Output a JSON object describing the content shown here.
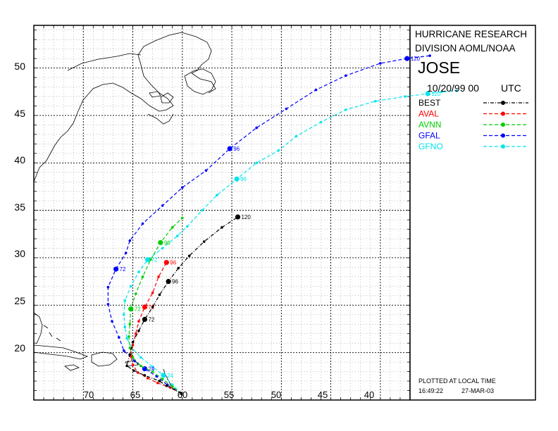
{
  "header": {
    "org_line1": "HURRICANE RESEARCH",
    "org_line2": "DIVISION AOML/NOAA",
    "storm_name": "JOSE",
    "datetime": "10/20/99 00",
    "tz": "UTC"
  },
  "footer": {
    "plotted_note": "PLOTTED AT LOCAL TIME",
    "plot_time": "16:49:22",
    "plot_date": "27-MAR-03"
  },
  "axes": {
    "lon_ticks": [
      "70",
      "65",
      "60",
      "55",
      "50",
      "45",
      "40"
    ],
    "lat_ticks": [
      "50",
      "45",
      "40",
      "35",
      "30",
      "25",
      "20"
    ],
    "lon_range": [
      -75,
      -37
    ],
    "lat_range": [
      15,
      54.5
    ]
  },
  "legend": [
    {
      "name": "BEST",
      "color": "#000000",
      "key": "best"
    },
    {
      "name": "AVAL",
      "color": "#ff0000",
      "key": "aval"
    },
    {
      "name": "AVNN",
      "color": "#00cc00",
      "key": "avnn"
    },
    {
      "name": "GFAL",
      "color": "#0000ff",
      "key": "gfal"
    },
    {
      "name": "GFNO",
      "color": "#00e5ee",
      "key": "gfno"
    }
  ],
  "tracks": {
    "best": {
      "color": "#000000",
      "points": [
        [
          -60.1,
          15.7
        ],
        [
          -61.6,
          16.5
        ],
        [
          -62.3,
          17.0
        ],
        [
          -63.8,
          17.6
        ],
        [
          -64.9,
          18.1
        ],
        [
          -65.6,
          18.6
        ],
        [
          -65.3,
          19.8
        ],
        [
          -65.0,
          21.1
        ],
        [
          -64.4,
          22.3
        ],
        [
          -63.8,
          23.5
        ],
        [
          -63.0,
          24.8
        ],
        [
          -62.3,
          26.1
        ],
        [
          -61.4,
          27.5
        ],
        [
          -60.4,
          28.9
        ],
        [
          -59.3,
          30.2
        ],
        [
          -57.8,
          31.7
        ],
        [
          -56.0,
          33.2
        ],
        [
          -54.4,
          34.3
        ]
      ],
      "labels": [
        {
          "t": "72",
          "at": 9
        },
        {
          "t": "96",
          "at": 12
        },
        {
          "t": "120",
          "at": 17
        }
      ]
    },
    "aval": {
      "color": "#ff0000",
      "points": [
        [
          -60.1,
          15.7
        ],
        [
          -61.2,
          16.3
        ],
        [
          -62.5,
          16.8
        ],
        [
          -63.5,
          17.3
        ],
        [
          -64.5,
          17.9
        ],
        [
          -65.0,
          18.7
        ],
        [
          -65.2,
          19.6
        ],
        [
          -65.0,
          20.8
        ],
        [
          -64.7,
          22.0
        ],
        [
          -64.4,
          23.3
        ],
        [
          -63.8,
          24.8
        ],
        [
          -63.0,
          26.3
        ],
        [
          -62.4,
          28.0
        ],
        [
          -61.6,
          29.5
        ]
      ],
      "labels": [
        {
          "t": "72",
          "at": 10
        },
        {
          "t": "96",
          "at": 13
        }
      ]
    },
    "avnn": {
      "color": "#00cc00",
      "points": [
        [
          -60.1,
          15.7
        ],
        [
          -61.0,
          16.4
        ],
        [
          -62.0,
          17.2
        ],
        [
          -63.0,
          18.0
        ],
        [
          -64.2,
          18.6
        ],
        [
          -65.0,
          19.5
        ],
        [
          -65.3,
          20.5
        ],
        [
          -65.4,
          21.7
        ],
        [
          -65.3,
          23.0
        ],
        [
          -65.2,
          24.6
        ],
        [
          -64.7,
          26.2
        ],
        [
          -64.0,
          28.0
        ],
        [
          -63.2,
          29.8
        ],
        [
          -62.2,
          31.6
        ],
        [
          -61.0,
          33.2
        ],
        [
          -60.0,
          34.2
        ]
      ],
      "labels": [
        {
          "t": "72",
          "at": 9
        },
        {
          "t": "96",
          "at": 13
        }
      ]
    },
    "gfal": {
      "color": "#0000ff",
      "points": [
        [
          -60.1,
          15.7
        ],
        [
          -61.5,
          16.6
        ],
        [
          -62.6,
          17.5
        ],
        [
          -63.8,
          18.3
        ],
        [
          -64.8,
          19.1
        ],
        [
          -65.9,
          20.2
        ],
        [
          -66.4,
          21.6
        ],
        [
          -67.1,
          23.3
        ],
        [
          -67.5,
          25.1
        ],
        [
          -67.5,
          26.9
        ],
        [
          -66.7,
          28.8
        ],
        [
          -65.7,
          30.5
        ],
        [
          -65.3,
          31.8
        ],
        [
          -64.0,
          33.6
        ],
        [
          -62.0,
          35.5
        ],
        [
          -60.0,
          37.4
        ],
        [
          -57.6,
          39.2
        ],
        [
          -55.2,
          41.5
        ],
        [
          -52.5,
          43.7
        ],
        [
          -49.5,
          45.7
        ],
        [
          -46.5,
          47.7
        ],
        [
          -43.5,
          49.2
        ],
        [
          -40.0,
          50.5
        ],
        [
          -37.3,
          51.0
        ],
        [
          -35.0,
          51.3
        ]
      ],
      "labels": [
        {
          "t": "24",
          "at": 3
        },
        {
          "t": "72",
          "at": 10
        },
        {
          "t": "96",
          "at": 17
        },
        {
          "t": "120",
          "at": 23
        }
      ]
    },
    "gfno": {
      "color": "#00e5ee",
      "points": [
        [
          -60.1,
          15.7
        ],
        [
          -61.0,
          16.6
        ],
        [
          -61.9,
          17.6
        ],
        [
          -63.0,
          18.5
        ],
        [
          -64.2,
          19.5
        ],
        [
          -65.1,
          20.5
        ],
        [
          -65.6,
          21.5
        ],
        [
          -65.8,
          22.7
        ],
        [
          -65.9,
          24.0
        ],
        [
          -65.8,
          25.5
        ],
        [
          -65.2,
          27.0
        ],
        [
          -64.4,
          28.5
        ],
        [
          -63.5,
          29.8
        ],
        [
          -62.0,
          31.0
        ],
        [
          -60.5,
          32.3
        ],
        [
          -59.5,
          33.3
        ],
        [
          -58.0,
          35.0
        ],
        [
          -56.5,
          36.6
        ],
        [
          -54.5,
          38.3
        ],
        [
          -52.5,
          40.0
        ],
        [
          -50.3,
          41.3
        ],
        [
          -48.5,
          42.8
        ],
        [
          -46.0,
          44.3
        ],
        [
          -43.5,
          45.6
        ],
        [
          -40.5,
          46.5
        ],
        [
          -37.5,
          47.0
        ],
        [
          -35.2,
          47.3
        ],
        [
          -33.8,
          47.5
        ],
        [
          -32.3,
          47.6
        ]
      ],
      "labels": [
        {
          "t": "24",
          "at": 2
        },
        {
          "t": "72",
          "at": 12
        },
        {
          "t": "96",
          "at": 18
        },
        {
          "t": "120",
          "at": 26
        }
      ]
    }
  }
}
